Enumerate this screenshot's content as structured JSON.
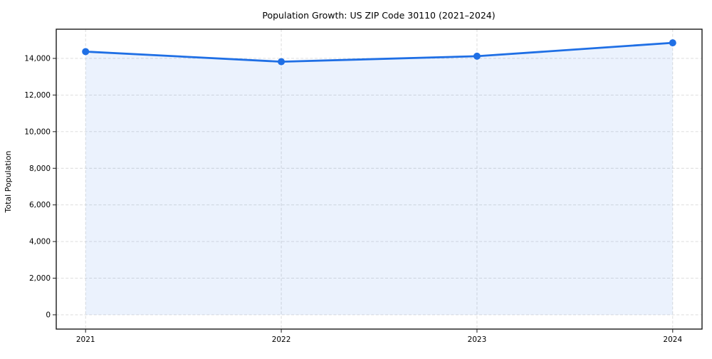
{
  "chart_data": {
    "type": "line",
    "title": "Population Growth: US ZIP Code 30110 (2021–2024)",
    "xlabel": "",
    "ylabel": "Total Population",
    "categories": [
      "2021",
      "2022",
      "2023",
      "2024"
    ],
    "series": [
      {
        "name": "Total Population",
        "values": [
          14370,
          13820,
          14120,
          14850
        ]
      }
    ],
    "ytick_values": [
      0,
      2000,
      4000,
      6000,
      8000,
      10000,
      12000,
      14000
    ],
    "ytick_labels": [
      "0",
      "2,000",
      "4,000",
      "6,000",
      "8,000",
      "10,000",
      "12,000",
      "14,000"
    ],
    "ylim": [
      -780,
      15594
    ],
    "grid": true,
    "grid_style": "dashed",
    "legend_position": "none",
    "area_fill": true,
    "fill_to_value": 0,
    "marker": "circle",
    "colors": {
      "line": "#1f6fe5",
      "marker": "#1f6fe5",
      "fill": "rgba(31,111,229,0.09)",
      "grid": "#d9d9d9",
      "spine": "#1a1a1a",
      "text": "#000000",
      "background": "#ffffff"
    }
  }
}
